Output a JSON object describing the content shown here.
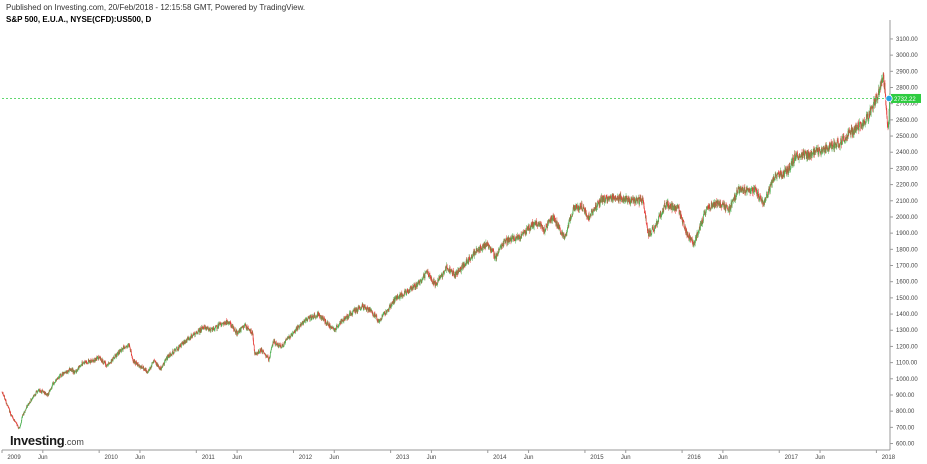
{
  "header": {
    "published": "Published on Investing.com, 20/Feb/2018 - 12:15:58 GMT, Powered by TradingView.",
    "symbol": "S&P 500, E.U.A., NYSE(CFD):US500, D"
  },
  "logo": {
    "name": "Investing",
    "suffix": ".com"
  },
  "colors": {
    "up_candle": "#4caf50",
    "down_candle": "#e53935",
    "last_price_line": "#2ecc40",
    "last_price_badge": "#2ecc40",
    "marker": "#29a3e6"
  },
  "chart_data": {
    "type": "line",
    "title": "S&P 500, E.U.A., NYSE(CFD):US500, D",
    "representation": "daily candlesticks",
    "y_axis_position": "right",
    "ylim": [
      560,
      3180
    ],
    "xlim": [
      2009.0,
      2018.14
    ],
    "grid": false,
    "y_ticks": [
      "600.00",
      "700.00",
      "800.00",
      "900.00",
      "1000.00",
      "1100.00",
      "1200.00",
      "1300.00",
      "1400.00",
      "1500.00",
      "1600.00",
      "1700.00",
      "1800.00",
      "1900.00",
      "2000.00",
      "2100.00",
      "2200.00",
      "2300.00",
      "2400.00",
      "2500.00",
      "2600.00",
      "2700.00",
      "2800.00",
      "2900.00",
      "3000.00",
      "3100.00"
    ],
    "x_ticks": [
      {
        "label": "2009",
        "t": 2009.0
      },
      {
        "label": "Jun",
        "t": 2009.42
      },
      {
        "label": "2010",
        "t": 2010.0
      },
      {
        "label": "Jun",
        "t": 2010.42
      },
      {
        "label": "2011",
        "t": 2011.0
      },
      {
        "label": "Jun",
        "t": 2011.42
      },
      {
        "label": "2012",
        "t": 2012.0
      },
      {
        "label": "Jun",
        "t": 2012.42
      },
      {
        "label": "2013",
        "t": 2013.0
      },
      {
        "label": "Jun",
        "t": 2013.42
      },
      {
        "label": "2014",
        "t": 2014.0
      },
      {
        "label": "Jun",
        "t": 2014.42
      },
      {
        "label": "2015",
        "t": 2015.0
      },
      {
        "label": "Jun",
        "t": 2015.42
      },
      {
        "label": "2016",
        "t": 2016.0
      },
      {
        "label": "Jun",
        "t": 2016.42
      },
      {
        "label": "2017",
        "t": 2017.0
      },
      {
        "label": "Jun",
        "t": 2017.42
      },
      {
        "label": "2018",
        "t": 2018.0
      }
    ],
    "last_price": 2732.22,
    "last_price_label": "2732.22",
    "series": [
      {
        "values": [
          {
            "t": 2009.0,
            "y": 920
          },
          {
            "t": 2009.04,
            "y": 860
          },
          {
            "t": 2009.09,
            "y": 780
          },
          {
            "t": 2009.13,
            "y": 740
          },
          {
            "t": 2009.18,
            "y": 690
          },
          {
            "t": 2009.21,
            "y": 770
          },
          {
            "t": 2009.25,
            "y": 820
          },
          {
            "t": 2009.29,
            "y": 860
          },
          {
            "t": 2009.33,
            "y": 900
          },
          {
            "t": 2009.38,
            "y": 930
          },
          {
            "t": 2009.42,
            "y": 920
          },
          {
            "t": 2009.47,
            "y": 900
          },
          {
            "t": 2009.52,
            "y": 960
          },
          {
            "t": 2009.58,
            "y": 1010
          },
          {
            "t": 2009.63,
            "y": 1030
          },
          {
            "t": 2009.71,
            "y": 1060
          },
          {
            "t": 2009.75,
            "y": 1040
          },
          {
            "t": 2009.83,
            "y": 1100
          },
          {
            "t": 2009.92,
            "y": 1110
          },
          {
            "t": 2010.0,
            "y": 1130
          },
          {
            "t": 2010.08,
            "y": 1080
          },
          {
            "t": 2010.17,
            "y": 1140
          },
          {
            "t": 2010.25,
            "y": 1190
          },
          {
            "t": 2010.31,
            "y": 1210
          },
          {
            "t": 2010.35,
            "y": 1110
          },
          {
            "t": 2010.42,
            "y": 1080
          },
          {
            "t": 2010.5,
            "y": 1040
          },
          {
            "t": 2010.56,
            "y": 1110
          },
          {
            "t": 2010.63,
            "y": 1060
          },
          {
            "t": 2010.71,
            "y": 1140
          },
          {
            "t": 2010.83,
            "y": 1200
          },
          {
            "t": 2010.92,
            "y": 1250
          },
          {
            "t": 2011.0,
            "y": 1280
          },
          {
            "t": 2011.08,
            "y": 1320
          },
          {
            "t": 2011.17,
            "y": 1300
          },
          {
            "t": 2011.25,
            "y": 1340
          },
          {
            "t": 2011.33,
            "y": 1350
          },
          {
            "t": 2011.42,
            "y": 1280
          },
          {
            "t": 2011.5,
            "y": 1330
          },
          {
            "t": 2011.58,
            "y": 1280
          },
          {
            "t": 2011.6,
            "y": 1150
          },
          {
            "t": 2011.67,
            "y": 1180
          },
          {
            "t": 2011.75,
            "y": 1120
          },
          {
            "t": 2011.79,
            "y": 1230
          },
          {
            "t": 2011.88,
            "y": 1200
          },
          {
            "t": 2011.96,
            "y": 1260
          },
          {
            "t": 2012.04,
            "y": 1310
          },
          {
            "t": 2012.13,
            "y": 1360
          },
          {
            "t": 2012.25,
            "y": 1400
          },
          {
            "t": 2012.35,
            "y": 1340
          },
          {
            "t": 2012.42,
            "y": 1300
          },
          {
            "t": 2012.5,
            "y": 1360
          },
          {
            "t": 2012.58,
            "y": 1400
          },
          {
            "t": 2012.71,
            "y": 1450
          },
          {
            "t": 2012.79,
            "y": 1420
          },
          {
            "t": 2012.88,
            "y": 1360
          },
          {
            "t": 2012.96,
            "y": 1420
          },
          {
            "t": 2013.04,
            "y": 1490
          },
          {
            "t": 2013.17,
            "y": 1540
          },
          {
            "t": 2013.29,
            "y": 1590
          },
          {
            "t": 2013.38,
            "y": 1660
          },
          {
            "t": 2013.46,
            "y": 1580
          },
          {
            "t": 2013.58,
            "y": 1690
          },
          {
            "t": 2013.67,
            "y": 1640
          },
          {
            "t": 2013.75,
            "y": 1700
          },
          {
            "t": 2013.88,
            "y": 1790
          },
          {
            "t": 2014.0,
            "y": 1830
          },
          {
            "t": 2014.08,
            "y": 1750
          },
          {
            "t": 2014.17,
            "y": 1850
          },
          {
            "t": 2014.33,
            "y": 1880
          },
          {
            "t": 2014.5,
            "y": 1970
          },
          {
            "t": 2014.58,
            "y": 1920
          },
          {
            "t": 2014.67,
            "y": 2000
          },
          {
            "t": 2014.79,
            "y": 1870
          },
          {
            "t": 2014.88,
            "y": 2050
          },
          {
            "t": 2014.96,
            "y": 2070
          },
          {
            "t": 2015.04,
            "y": 2000
          },
          {
            "t": 2015.17,
            "y": 2110
          },
          {
            "t": 2015.33,
            "y": 2120
          },
          {
            "t": 2015.5,
            "y": 2100
          },
          {
            "t": 2015.6,
            "y": 2100
          },
          {
            "t": 2015.65,
            "y": 1890
          },
          {
            "t": 2015.71,
            "y": 1930
          },
          {
            "t": 2015.83,
            "y": 2080
          },
          {
            "t": 2015.96,
            "y": 2050
          },
          {
            "t": 2016.05,
            "y": 1900
          },
          {
            "t": 2016.12,
            "y": 1830
          },
          {
            "t": 2016.25,
            "y": 2050
          },
          {
            "t": 2016.38,
            "y": 2090
          },
          {
            "t": 2016.48,
            "y": 2040
          },
          {
            "t": 2016.58,
            "y": 2170
          },
          {
            "t": 2016.75,
            "y": 2160
          },
          {
            "t": 2016.84,
            "y": 2090
          },
          {
            "t": 2016.96,
            "y": 2250
          },
          {
            "t": 2017.08,
            "y": 2280
          },
          {
            "t": 2017.17,
            "y": 2380
          },
          {
            "t": 2017.33,
            "y": 2390
          },
          {
            "t": 2017.5,
            "y": 2430
          },
          {
            "t": 2017.63,
            "y": 2460
          },
          {
            "t": 2017.75,
            "y": 2530
          },
          {
            "t": 2017.88,
            "y": 2590
          },
          {
            "t": 2017.96,
            "y": 2680
          },
          {
            "t": 2018.04,
            "y": 2790
          },
          {
            "t": 2018.07,
            "y": 2870
          },
          {
            "t": 2018.09,
            "y": 2770
          },
          {
            "t": 2018.11,
            "y": 2600
          },
          {
            "t": 2018.12,
            "y": 2560
          },
          {
            "t": 2018.14,
            "y": 2732
          }
        ]
      }
    ]
  }
}
